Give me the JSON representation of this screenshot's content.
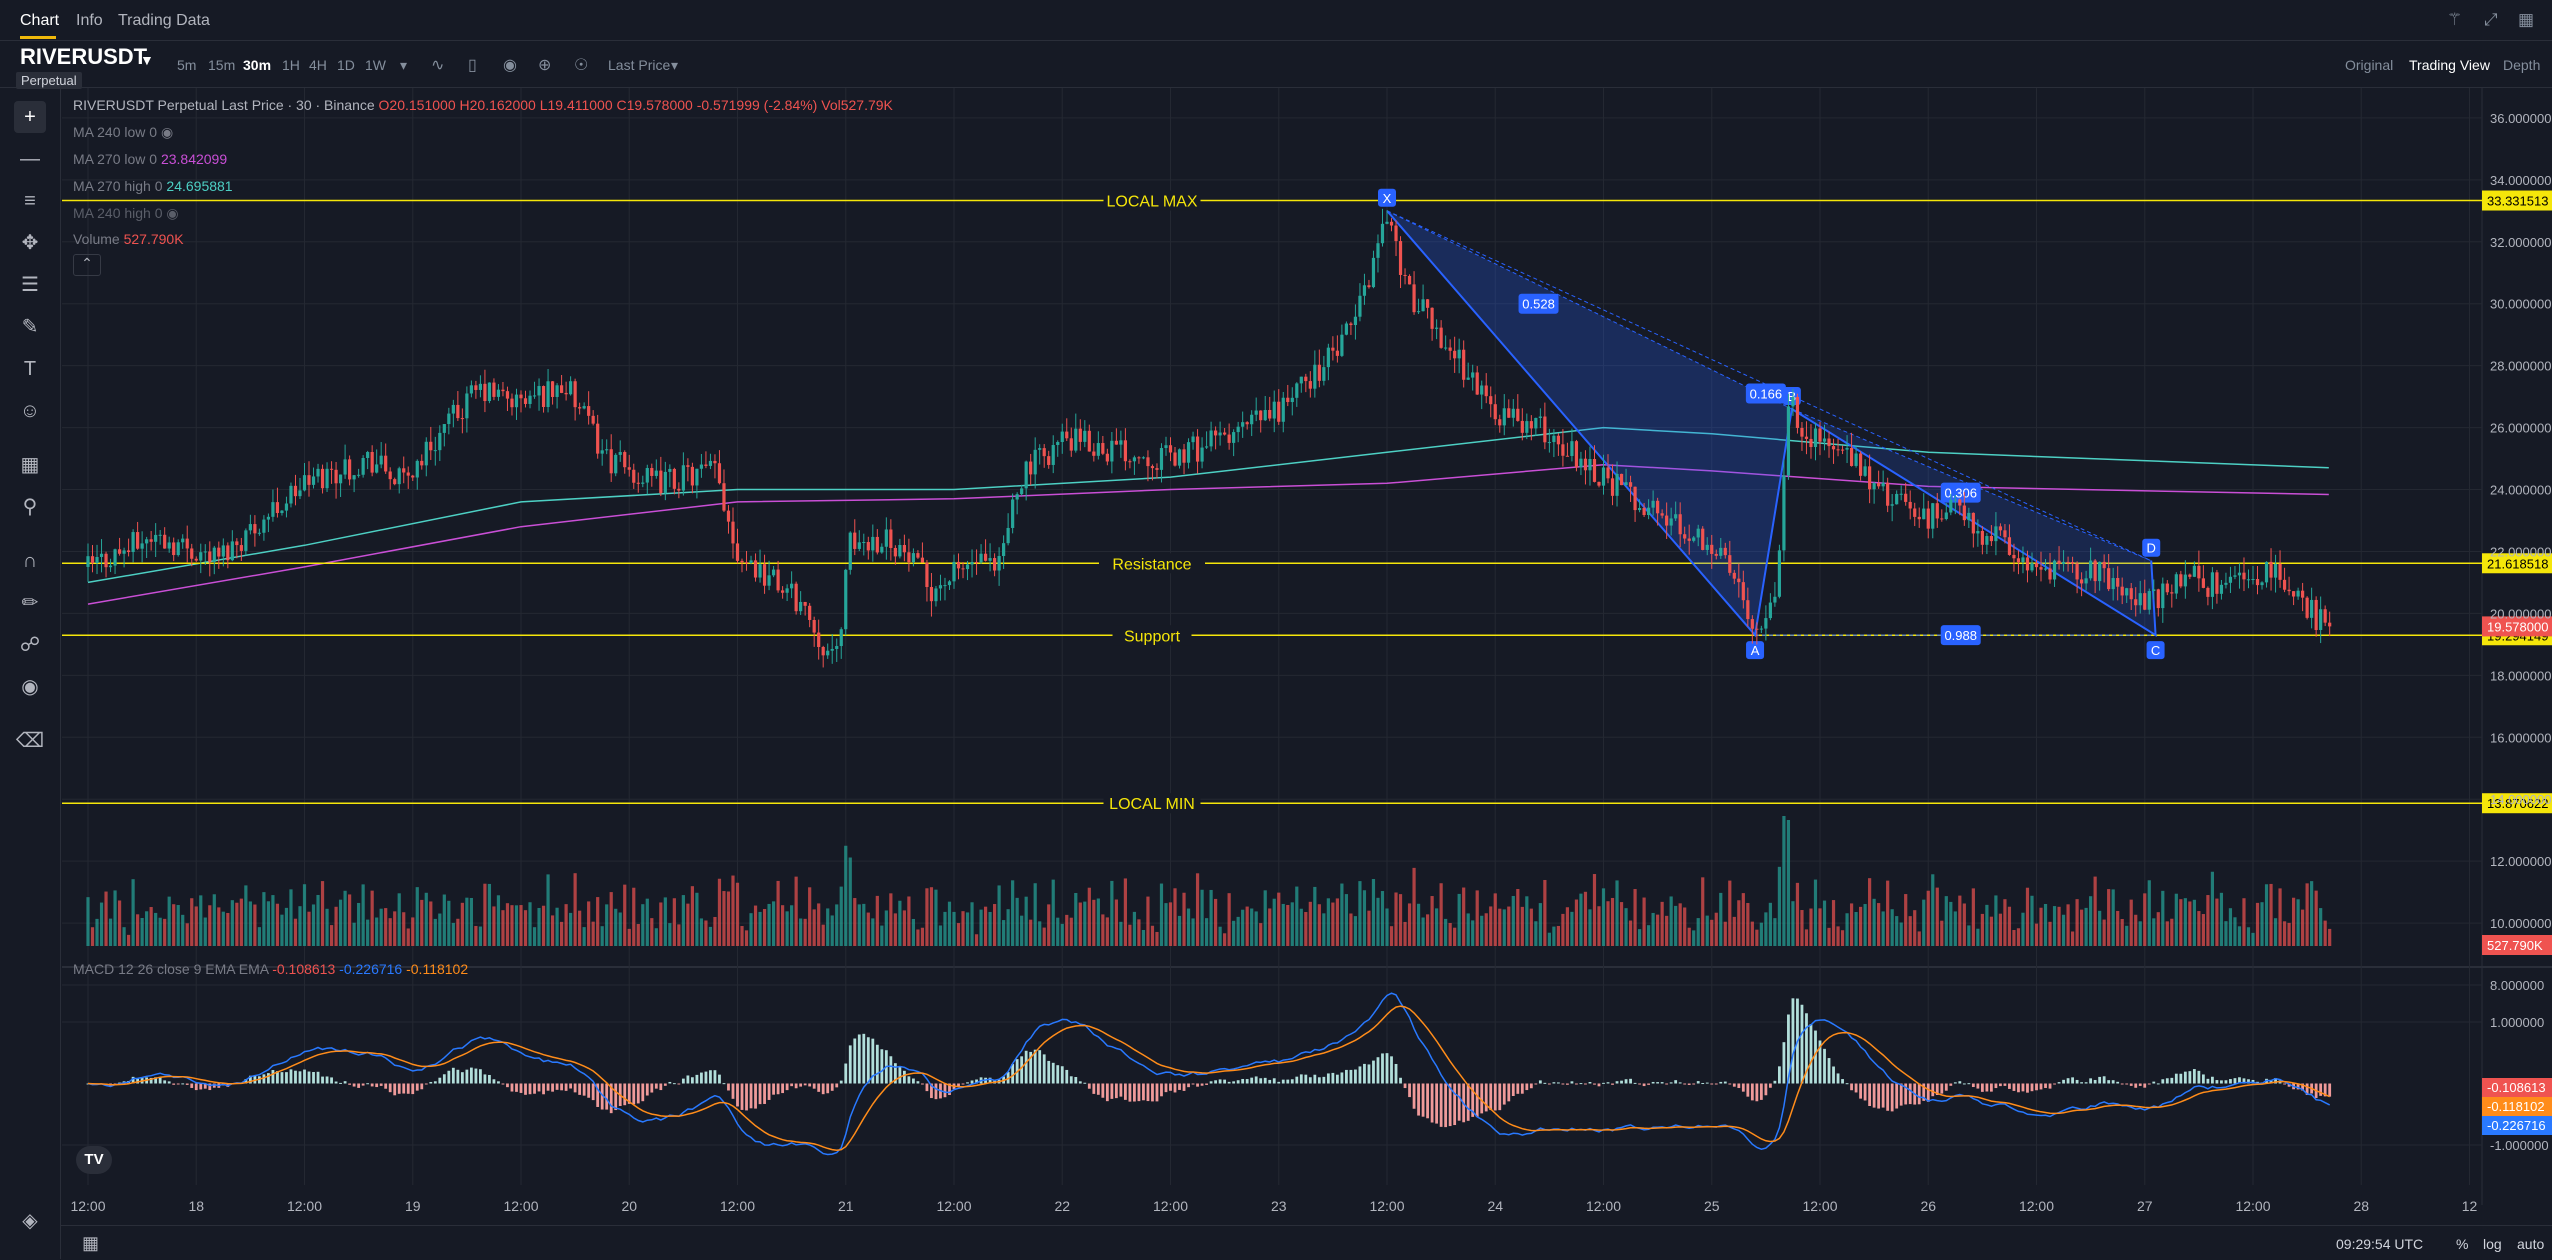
{
  "top_tabs": {
    "chart": "Chart",
    "info": "Info",
    "trading_data": "Trading Data"
  },
  "symbol": {
    "name": "RIVERUSDT",
    "badge": "Perpetual"
  },
  "intervals": [
    "5m",
    "15m",
    "30m",
    "1H",
    "4H",
    "1D",
    "1W"
  ],
  "active_interval": "30m",
  "price_type": "Last Price",
  "views": {
    "original": "Original",
    "tradingview": "Trading View",
    "depth": "Depth"
  },
  "legend": {
    "title": "RIVERUSDT Perpetual Last Price · 30 · Binance",
    "o": "O20.151000",
    "h": "H20.162000",
    "l": "L19.411000",
    "c": "C19.578000",
    "chg": "-0.571999 (-2.84%)",
    "vol": "Vol527.79K",
    "ma240_low": "MA 240 low 0",
    "ma270_low": "MA 270 low 0",
    "ma270_low_val": "23.842099",
    "ma270_high": "MA 270 high 0",
    "ma270_high_val": "24.695881",
    "ma240_high": "MA 240 high 0",
    "volume": "Volume",
    "volume_val": "527.790K",
    "macd": "MACD 12 26 close 9 EMA EMA",
    "macd_v1": "-0.108613",
    "macd_v2": "-0.226716",
    "macd_v3": "-0.118102"
  },
  "colors": {
    "up": "#26a69a",
    "down": "#ef5350",
    "hline": "#f5e60a",
    "ma270_low": "#c94fd6",
    "ma270_high": "#4dd0c4",
    "macd": "#2979ff",
    "signal": "#ff8c1a",
    "pattern": "#2962ff"
  },
  "chart_data": {
    "type": "candlestick",
    "y_axis_ticks": [
      "36.000000",
      "34.000000",
      "32.000000",
      "30.000000",
      "28.000000",
      "26.000000",
      "24.000000",
      "22.000000",
      "20.000000",
      "18.000000",
      "16.000000",
      "14.000000",
      "12.000000",
      "10.000000",
      "8.000000"
    ],
    "ylim": [
      7.1,
      36.9
    ],
    "x_tick_labels": [
      {
        "t": 0,
        "label": "12:00"
      },
      {
        "t": 0.5,
        "label": "18"
      },
      {
        "t": 1,
        "label": "12:00"
      },
      {
        "t": 1.5,
        "label": "19"
      },
      {
        "t": 2,
        "label": "12:00"
      },
      {
        "t": 2.5,
        "label": "20"
      },
      {
        "t": 3,
        "label": "12:00"
      },
      {
        "t": 3.5,
        "label": "21"
      },
      {
        "t": 4,
        "label": "12:00"
      },
      {
        "t": 4.5,
        "label": "22"
      },
      {
        "t": 5,
        "label": "12:00"
      },
      {
        "t": 5.5,
        "label": "23"
      },
      {
        "t": 6,
        "label": "12:00"
      },
      {
        "t": 6.5,
        "label": "24"
      },
      {
        "t": 7,
        "label": "12:00"
      },
      {
        "t": 7.5,
        "label": "25"
      },
      {
        "t": 8,
        "label": "12:00"
      },
      {
        "t": 8.5,
        "label": "26"
      },
      {
        "t": 9,
        "label": "12:00"
      },
      {
        "t": 9.5,
        "label": "27"
      },
      {
        "t": 10,
        "label": "12:00"
      },
      {
        "t": 10.5,
        "label": "28"
      },
      {
        "t": 11,
        "label": "12"
      }
    ],
    "price_path": [
      [
        0,
        21.5
      ],
      [
        0.3,
        22.5
      ],
      [
        0.6,
        21.8
      ],
      [
        1.0,
        24.2
      ],
      [
        1.3,
        25.0
      ],
      [
        1.45,
        24.2
      ],
      [
        1.6,
        25.6
      ],
      [
        1.8,
        27.2
      ],
      [
        2.0,
        26.8
      ],
      [
        2.2,
        27.4
      ],
      [
        2.4,
        25.0
      ],
      [
        2.6,
        24.2
      ],
      [
        2.9,
        24.6
      ],
      [
        3.0,
        22.0
      ],
      [
        3.3,
        20.3
      ],
      [
        3.45,
        18.3
      ],
      [
        3.52,
        22.2
      ],
      [
        3.7,
        22.5
      ],
      [
        3.9,
        20.8
      ],
      [
        4.1,
        21.7
      ],
      [
        4.2,
        21.2
      ],
      [
        4.3,
        24.4
      ],
      [
        4.5,
        25.6
      ],
      [
        5.0,
        25.0
      ],
      [
        5.3,
        25.8
      ],
      [
        5.5,
        26.6
      ],
      [
        5.8,
        28.7
      ],
      [
        5.9,
        30.5
      ],
      [
        6.0,
        33.0
      ],
      [
        6.1,
        30.3
      ],
      [
        6.3,
        28.5
      ],
      [
        6.5,
        26.5
      ],
      [
        6.7,
        26.0
      ],
      [
        6.9,
        25.0
      ],
      [
        7.1,
        23.9
      ],
      [
        7.3,
        23.0
      ],
      [
        7.5,
        22.3
      ],
      [
        7.65,
        20.6
      ],
      [
        7.7,
        19.5
      ],
      [
        7.8,
        20.8
      ],
      [
        7.85,
        26.8
      ],
      [
        7.95,
        25.8
      ],
      [
        8.1,
        25.2
      ],
      [
        8.3,
        23.8
      ],
      [
        8.5,
        23.0
      ],
      [
        8.6,
        23.6
      ],
      [
        8.7,
        22.8
      ],
      [
        8.85,
        22.3
      ],
      [
        9.0,
        21.3
      ],
      [
        9.2,
        21.4
      ],
      [
        9.35,
        21.2
      ],
      [
        9.5,
        20.3
      ],
      [
        9.6,
        20.7
      ],
      [
        9.7,
        21.3
      ],
      [
        9.8,
        20.9
      ],
      [
        10.0,
        21.3
      ],
      [
        10.15,
        21.1
      ],
      [
        10.25,
        20.1
      ],
      [
        10.35,
        19.58
      ]
    ],
    "h_lines": [
      {
        "label": "LOCAL MAX",
        "value": 33.331513,
        "value_label": "33.331513"
      },
      {
        "label": "Resistance",
        "value": 21.618518,
        "value_label": "21.618518"
      },
      {
        "label": "Support",
        "value": 19.294149,
        "value_label": "19.294149"
      },
      {
        "label": "LOCAL MIN",
        "value": 13.870622,
        "value_label": "13.870622"
      }
    ],
    "last_price_label": "19.578000",
    "volume_label": "527.790K",
    "ma270_low_path": [
      [
        0,
        20.3
      ],
      [
        1,
        21.5
      ],
      [
        2,
        22.8
      ],
      [
        3,
        23.6
      ],
      [
        4,
        23.7
      ],
      [
        5,
        24.0
      ],
      [
        6,
        24.2
      ],
      [
        7,
        24.8
      ],
      [
        7.5,
        24.6
      ],
      [
        8.5,
        24.1
      ],
      [
        10.35,
        23.84
      ]
    ],
    "ma270_high_path": [
      [
        0,
        21.0
      ],
      [
        1,
        22.2
      ],
      [
        2,
        23.6
      ],
      [
        3,
        24.0
      ],
      [
        4,
        24.0
      ],
      [
        5,
        24.4
      ],
      [
        6,
        25.2
      ],
      [
        7,
        26.0
      ],
      [
        7.5,
        25.8
      ],
      [
        8.5,
        25.2
      ],
      [
        10.35,
        24.7
      ]
    ],
    "pattern": {
      "points": [
        {
          "name": "X",
          "t": 6.0,
          "v": 33.0
        },
        {
          "name": "A",
          "t": 7.7,
          "v": 19.3
        },
        {
          "name": "B",
          "t": 7.87,
          "v": 26.6
        },
        {
          "name": "C",
          "t": 9.55,
          "v": 19.3
        },
        {
          "name": "D",
          "t": 9.53,
          "v": 21.7
        }
      ],
      "ratios": [
        {
          "label": "0.528",
          "t": 6.7,
          "v": 30.0
        },
        {
          "label": "0.166",
          "t": 7.75,
          "v": 27.1
        },
        {
          "label": "0.306",
          "t": 8.65,
          "v": 23.9
        },
        {
          "label": "0.988",
          "t": 8.65,
          "v": 19.3
        }
      ]
    },
    "macd_ticks": [
      "1.000000",
      "-1.000000"
    ],
    "macd_ylim": [
      -1.5,
      1.6
    ],
    "macd_labels": [
      "-0.108613",
      "-0.118102",
      "-0.226716"
    ]
  },
  "bottom": {
    "time": "09:29:54 UTC",
    "pct": "%",
    "log": "log",
    "auto": "auto"
  }
}
